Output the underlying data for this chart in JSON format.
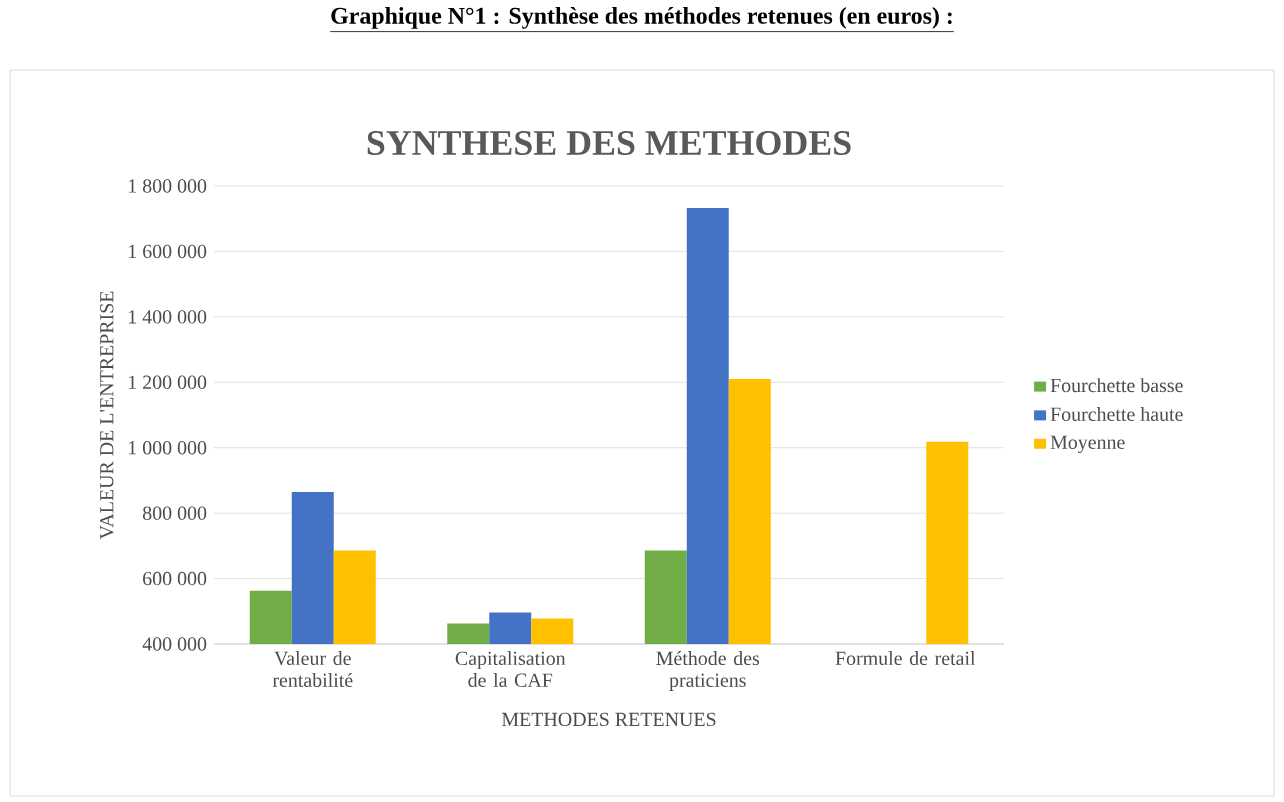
{
  "chart_data": {
    "type": "bar",
    "title": "SYNTHESE DES METHODES",
    "annotations": [
      "Graphique N°1 : Synthèse des méthodes retenues (en euros) :"
    ],
    "xlabel": "METHODES RETENUES",
    "ylabel": "VALEUR DE L'ENTREPRISE",
    "categories": [
      "Valeur de rentabilité",
      "Capitalisation de la CAF",
      "Méthode des praticiens",
      "Formule de retail"
    ],
    "series": [
      {
        "name": "Fourchette basse",
        "color": "#70ad47",
        "values": [
          563000,
          463000,
          686000,
          null
        ]
      },
      {
        "name": "Fourchette haute",
        "color": "#4472c4",
        "values": [
          865000,
          496000,
          1733000,
          null
        ]
      },
      {
        "name": "Moyenne",
        "color": "#ffc000",
        "values": [
          686000,
          478000,
          1210000,
          1018000
        ]
      }
    ],
    "ylim": [
      400000,
      1800000
    ],
    "yticks": [
      {
        "value": 400000,
        "label": "400 000"
      },
      {
        "value": 600000,
        "label": "600 000"
      },
      {
        "value": 800000,
        "label": "800 000"
      },
      {
        "value": 1000000,
        "label": "1 000 000"
      },
      {
        "value": 1200000,
        "label": "1 200 000"
      },
      {
        "value": 1400000,
        "label": "1 400 000"
      },
      {
        "value": 1600000,
        "label": "1 600 000"
      },
      {
        "value": 1800000,
        "label": "1 800 000"
      }
    ],
    "grid": "y",
    "legend": "right"
  }
}
